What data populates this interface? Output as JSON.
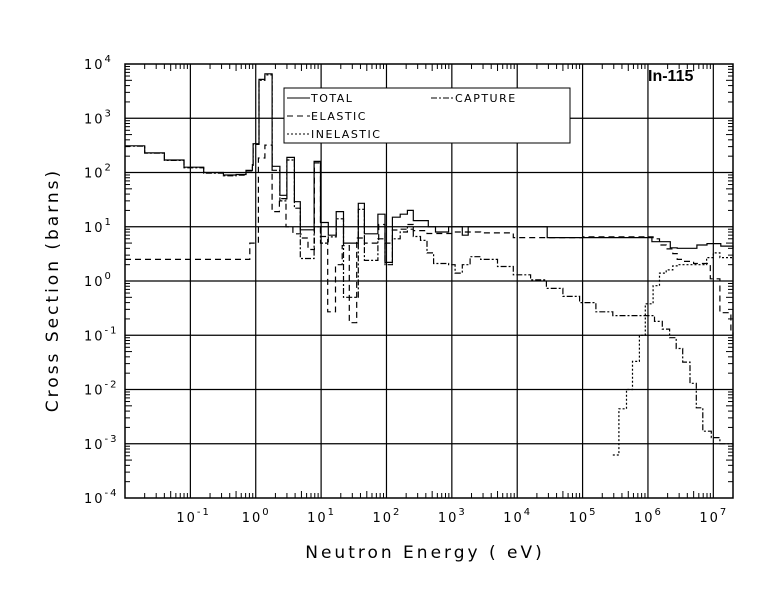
{
  "chart_data": {
    "type": "line",
    "title": "In-115",
    "xlabel": "Neutron Energy ( eV)",
    "ylabel": "Cross Section (barns)",
    "xscale": "log",
    "yscale": "log",
    "xlim": [
      0.01,
      20000000
    ],
    "ylim": [
      0.0001,
      10000
    ],
    "grid": true,
    "legend_position": "top-center",
    "x_tick_labels": [
      {
        "base": "10",
        "exp": "-1",
        "value": 0.1
      },
      {
        "base": "10",
        "exp": "0",
        "value": 1
      },
      {
        "base": "10",
        "exp": "1",
        "value": 10
      },
      {
        "base": "10",
        "exp": "2",
        "value": 100
      },
      {
        "base": "10",
        "exp": "3",
        "value": 1000
      },
      {
        "base": "10",
        "exp": "4",
        "value": 10000
      },
      {
        "base": "10",
        "exp": "5",
        "value": 100000
      },
      {
        "base": "10",
        "exp": "6",
        "value": 1000000
      },
      {
        "base": "10",
        "exp": "7",
        "value": 10000000
      }
    ],
    "y_tick_labels": [
      {
        "base": "10",
        "exp": "4",
        "value": 10000
      },
      {
        "base": "10",
        "exp": "3",
        "value": 1000
      },
      {
        "base": "10",
        "exp": "2",
        "value": 100
      },
      {
        "base": "10",
        "exp": "1",
        "value": 10
      },
      {
        "base": "10",
        "exp": "0",
        "value": 1
      },
      {
        "base": "10",
        "exp": "-1",
        "value": 0.1
      },
      {
        "base": "10",
        "exp": "-2",
        "value": 0.01
      },
      {
        "base": "10",
        "exp": "-3",
        "value": 0.001
      },
      {
        "base": "10",
        "exp": "-4",
        "value": 0.0001
      }
    ],
    "series": [
      {
        "name": "TOTAL",
        "style": "solid",
        "points": [
          [
            0.01,
            310
          ],
          [
            0.02,
            230
          ],
          [
            0.04,
            170
          ],
          [
            0.08,
            125
          ],
          [
            0.16,
            100
          ],
          [
            0.32,
            90
          ],
          [
            0.5,
            92
          ],
          [
            0.71,
            110
          ],
          [
            0.89,
            140
          ],
          [
            0.91,
            340
          ],
          [
            1.12,
            5200
          ],
          [
            1.38,
            6600
          ],
          [
            1.78,
            130
          ],
          [
            2.34,
            38
          ],
          [
            3.0,
            190
          ],
          [
            3.9,
            29
          ],
          [
            4.8,
            8.8
          ],
          [
            7.8,
            160
          ],
          [
            9.8,
            12
          ],
          [
            12.9,
            7
          ],
          [
            17,
            19
          ],
          [
            22,
            5
          ],
          [
            37,
            27
          ],
          [
            46,
            7.4
          ],
          [
            74,
            17
          ],
          [
            95,
            2.2
          ],
          [
            123,
            15
          ],
          [
            162,
            17
          ],
          [
            209,
            20
          ],
          [
            257,
            13
          ],
          [
            437,
            10
          ],
          [
            562,
            8
          ],
          [
            891,
            10
          ],
          [
            1445,
            7
          ],
          [
            1778,
            10
          ],
          [
            2750,
            10
          ],
          [
            28800,
            6.3
          ],
          [
            1000000,
            6.3
          ],
          [
            1150000,
            5.3
          ],
          [
            2200000,
            4.1
          ],
          [
            2800000,
            4.0
          ],
          [
            5600000,
            4.6
          ],
          [
            8000000,
            4.9
          ],
          [
            13000000,
            4.4
          ],
          [
            20000000,
            4.0
          ]
        ]
      },
      {
        "name": "ELASTIC",
        "style": "dashed",
        "points": [
          [
            0.01,
            2.5
          ],
          [
            0.56,
            2.5
          ],
          [
            0.81,
            5
          ],
          [
            1.1,
            185
          ],
          [
            1.38,
            320
          ],
          [
            1.78,
            19
          ],
          [
            2.3,
            33
          ],
          [
            2.9,
            10
          ],
          [
            3.7,
            7.4
          ],
          [
            4.9,
            6.2
          ],
          [
            6.3,
            3.8
          ],
          [
            7.9,
            150
          ],
          [
            9.8,
            6.6
          ],
          [
            12.6,
            0.27
          ],
          [
            16.6,
            2
          ],
          [
            21,
            4.5
          ],
          [
            27,
            0.17
          ],
          [
            35,
            6.2
          ],
          [
            46,
            5
          ],
          [
            60,
            5
          ],
          [
            76,
            11
          ],
          [
            95,
            5
          ],
          [
            123,
            8.7
          ],
          [
            162,
            9
          ],
          [
            257,
            8.5
          ],
          [
            417,
            7.5
          ],
          [
            1000,
            8
          ],
          [
            2750,
            7.7
          ],
          [
            8700,
            6.3
          ],
          [
            100000,
            6.5
          ],
          [
            1000000,
            6.5
          ],
          [
            1200000,
            6
          ],
          [
            1500000,
            4.6
          ],
          [
            1900000,
            3.9
          ],
          [
            2400000,
            3.2
          ],
          [
            2800000,
            2.5
          ],
          [
            3500000,
            2.3
          ],
          [
            5000000,
            2.1
          ],
          [
            9000000,
            1.1
          ],
          [
            12600000,
            0.26
          ],
          [
            18600000,
            0.11
          ],
          [
            20000000,
            0.1
          ]
        ]
      },
      {
        "name": "INELASTIC",
        "style": "dotted",
        "points": [
          [
            290000,
            0.00062
          ],
          [
            360000,
            0.0044
          ],
          [
            470000,
            0.01
          ],
          [
            580000,
            0.033
          ],
          [
            740000,
            0.1
          ],
          [
            910000,
            0.38
          ],
          [
            1200000,
            0.82
          ],
          [
            1500000,
            1.4
          ],
          [
            1900000,
            1.6
          ],
          [
            2400000,
            1.9
          ],
          [
            3000000,
            2.0
          ],
          [
            7900000,
            2.7
          ],
          [
            10000000,
            3.3
          ],
          [
            12600000,
            2.7
          ],
          [
            20000000,
            2.5
          ]
        ]
      },
      {
        "name": "CAPTURE",
        "style": "dashdot",
        "points": [
          [
            0.01,
            307
          ],
          [
            0.02,
            227
          ],
          [
            0.04,
            167
          ],
          [
            0.08,
            122
          ],
          [
            0.16,
            97
          ],
          [
            0.32,
            87
          ],
          [
            0.5,
            89
          ],
          [
            0.71,
            107
          ],
          [
            0.89,
            135
          ],
          [
            0.91,
            330
          ],
          [
            1.12,
            5000
          ],
          [
            1.38,
            6300
          ],
          [
            1.78,
            110
          ],
          [
            2.34,
            30
          ],
          [
            3.0,
            170
          ],
          [
            3.9,
            22
          ],
          [
            4.8,
            2.6
          ],
          [
            7.8,
            10
          ],
          [
            9.8,
            5
          ],
          [
            12.9,
            6.5
          ],
          [
            17,
            14
          ],
          [
            22,
            0.5
          ],
          [
            37,
            21
          ],
          [
            46,
            2.4
          ],
          [
            74,
            6
          ],
          [
            95,
            2
          ],
          [
            123,
            6
          ],
          [
            162,
            8
          ],
          [
            209,
            11
          ],
          [
            257,
            6.6
          ],
          [
            331,
            5.6
          ],
          [
            417,
            3.3
          ],
          [
            525,
            2.1
          ],
          [
            891,
            2
          ],
          [
            1122,
            1.4
          ],
          [
            1445,
            2
          ],
          [
            1900,
            2.8
          ],
          [
            2750,
            2.5
          ],
          [
            5000,
            1.85
          ],
          [
            8700,
            1.3
          ],
          [
            16000,
            1.05
          ],
          [
            28000,
            0.73
          ],
          [
            50000,
            0.52
          ],
          [
            90000,
            0.4
          ],
          [
            160000,
            0.27
          ],
          [
            290000,
            0.23
          ],
          [
            1260000,
            0.18
          ],
          [
            1660000,
            0.13
          ],
          [
            2140000,
            0.09
          ],
          [
            2700000,
            0.057
          ],
          [
            3400000,
            0.032
          ],
          [
            4400000,
            0.013
          ],
          [
            5500000,
            0.0046
          ],
          [
            6900000,
            0.0017
          ],
          [
            9300000,
            0.0013
          ],
          [
            12600000,
            0.001
          ],
          [
            20000000,
            0.0009
          ]
        ]
      }
    ]
  },
  "legend": {
    "total": "TOTAL",
    "capture": "CAPTURE",
    "elastic": "ELASTIC",
    "inelastic": "INELASTIC"
  }
}
